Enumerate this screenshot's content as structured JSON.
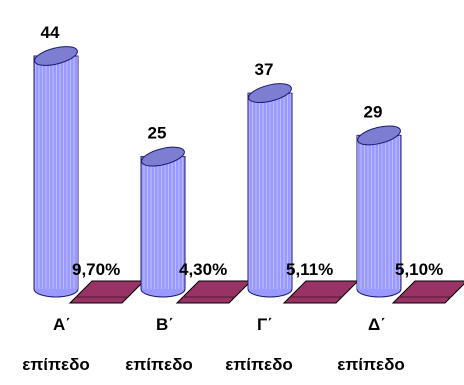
{
  "chart_data": {
    "type": "bar",
    "categories": [
      [
        "Α΄",
        "επίπεδο"
      ],
      [
        "Β΄",
        "επίπεδο"
      ],
      [
        "Γ΄",
        "επίπεδο"
      ],
      [
        "Δ΄",
        "επίπεδο"
      ]
    ],
    "series": [
      {
        "values": [
          44,
          25,
          37,
          29
        ],
        "labels": [
          "44",
          "25",
          "37",
          "29"
        ],
        "color": "#9999ff"
      },
      {
        "values": [
          9.7,
          4.3,
          5.11,
          5.1
        ],
        "labels": [
          "9,70%",
          "4,30%",
          "5,11%",
          "5,10%"
        ],
        "color": "#993366"
      }
    ],
    "ylim": [
      0,
      44
    ],
    "grid": false,
    "legend": "none"
  }
}
